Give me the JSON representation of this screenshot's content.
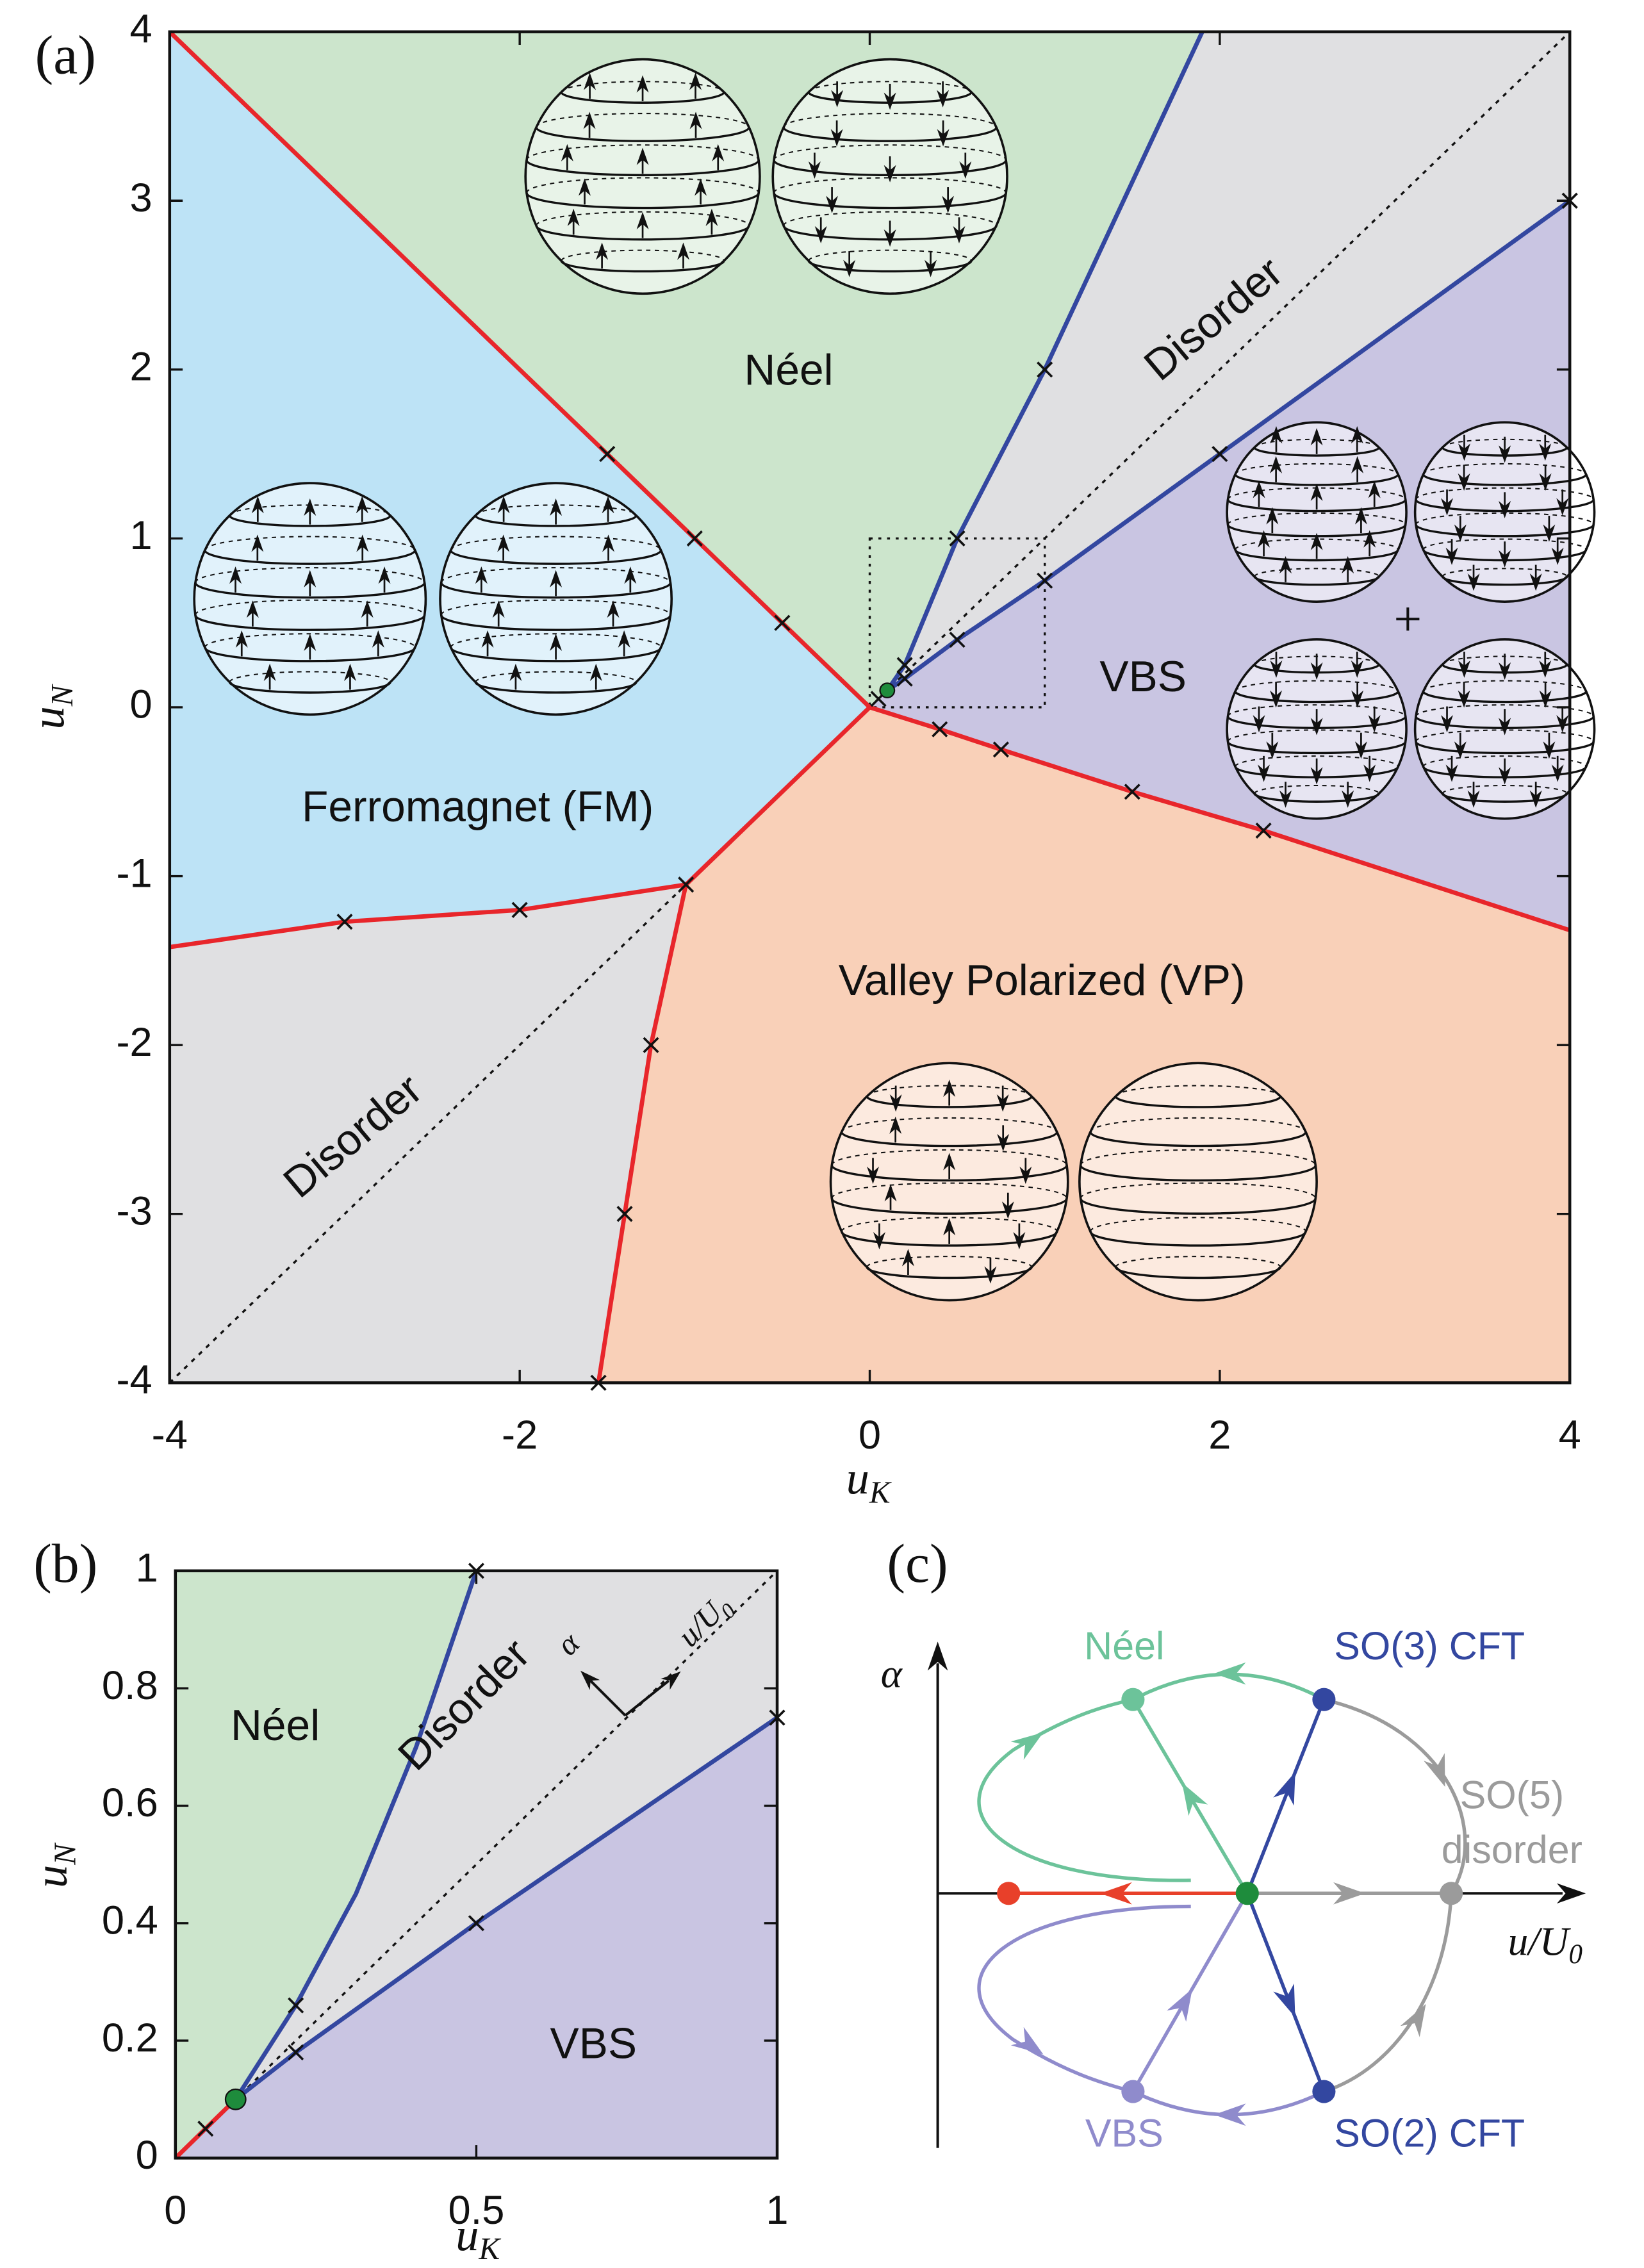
{
  "chart_data": [
    {
      "type": "phase",
      "panel": "(a)",
      "xlabel": {
        "base": "u",
        "sub": "K"
      },
      "ylabel": {
        "base": "u",
        "sub": "N"
      },
      "xlim": [
        -4,
        4
      ],
      "ylim": [
        -4,
        4
      ],
      "xticks": [
        -4,
        -2,
        0,
        2,
        4
      ],
      "yticks": [
        -4,
        -3,
        -2,
        -1,
        0,
        1,
        2,
        3,
        4
      ],
      "regions": [
        {
          "name": "Ferromagnet (FM)",
          "color": "#bde3f6",
          "x": [
            -4,
            0,
            -1.05,
            -2,
            -3,
            -4
          ],
          "y": [
            4,
            0,
            -1.05,
            -1.2,
            -1.27,
            -1.42
          ]
        },
        {
          "name": "Néel",
          "color": "#cce5cc",
          "x": [
            -4,
            1.9,
            1,
            0.5,
            0.2,
            0.1,
            0
          ],
          "y": [
            4,
            4,
            2,
            1,
            0.25,
            0.1,
            0
          ]
        },
        {
          "name": "Disorder",
          "color": "#e0e0e2",
          "x": [
            1.9,
            4,
            4,
            2,
            1,
            0.5,
            0.2,
            0.1,
            0.2,
            0.5,
            1
          ],
          "y": [
            4,
            4,
            3,
            1.5,
            0.75,
            0.4,
            0.17,
            0.1,
            0.25,
            1,
            2
          ]
        },
        {
          "name": "VBS",
          "color": "#c9c5e2",
          "x": [
            0.1,
            4,
            4,
            2.25,
            1.5,
            0.75,
            0.4,
            0
          ],
          "y": [
            0.1,
            3,
            -1.32,
            -0.73,
            -0.5,
            -0.25,
            -0.13,
            0
          ]
        },
        {
          "name": "Valley Polarized (VP)",
          "color": "#f9d0b8",
          "x": [
            0,
            0.4,
            0.75,
            1.5,
            2.25,
            4,
            4,
            -1.55,
            -1.4,
            -1.25,
            -1.05
          ],
          "y": [
            0,
            -0.13,
            -0.25,
            -0.5,
            -0.73,
            -1.32,
            -4,
            -4,
            -3,
            -2,
            -1.05
          ]
        },
        {
          "name": "Disorder",
          "color": "#e0e0e2",
          "x": [
            -4,
            -3,
            -2,
            -1.05,
            -1.25,
            -1.4,
            -1.55,
            -4
          ],
          "y": [
            -1.42,
            -1.27,
            -1.2,
            -1.05,
            -2,
            -3,
            -4,
            -4
          ]
        }
      ],
      "lines": [
        {
          "color": "#e8262b",
          "x": [
            -4,
            -1.5,
            -1,
            -0.5,
            0
          ],
          "y": [
            4,
            1.5,
            1,
            0.5,
            0
          ]
        },
        {
          "color": "#e8262b",
          "x": [
            0,
            0.4,
            0.75,
            1.5,
            2.25,
            4
          ],
          "y": [
            0,
            -0.13,
            -0.25,
            -0.5,
            -0.73,
            -1.32
          ]
        },
        {
          "color": "#e8262b",
          "x": [
            -4,
            -3,
            -2,
            -1.05
          ],
          "y": [
            -1.42,
            -1.27,
            -1.2,
            -1.05
          ]
        },
        {
          "color": "#e8262b",
          "x": [
            0,
            -1.05
          ],
          "y": [
            0,
            -1.05
          ]
        },
        {
          "color": "#e8262b",
          "x": [
            -1.05,
            -1.25,
            -1.4,
            -1.55
          ],
          "y": [
            -1.05,
            -2,
            -3,
            -4
          ]
        },
        {
          "color": "#3347a0",
          "x": [
            0.1,
            0.2,
            0.5,
            1,
            1.9
          ],
          "y": [
            0.1,
            0.25,
            1,
            2,
            4
          ]
        },
        {
          "color": "#3347a0",
          "x": [
            0.1,
            0.2,
            0.5,
            1,
            2,
            4
          ],
          "y": [
            0.1,
            0.17,
            0.4,
            0.75,
            1.5,
            3
          ]
        }
      ],
      "markers": {
        "x": [
          -1.5,
          -1,
          -0.5,
          0.05,
          0.2,
          0.2,
          0.5,
          0.5,
          1,
          1,
          2,
          4,
          0.4,
          0.75,
          1.5,
          2.25,
          -1.05,
          -2,
          -3,
          -1.25,
          -1.4,
          -1.55
        ],
        "y": [
          1.5,
          1,
          0.5,
          0.05,
          0.25,
          0.17,
          1,
          0.4,
          2,
          0.75,
          1.5,
          3,
          -0.13,
          -0.25,
          -0.5,
          -0.73,
          -1.05,
          -1.2,
          -1.27,
          -2,
          -3,
          -4
        ]
      },
      "critical_point": {
        "x": 0.1,
        "y": 0.1,
        "color": "#1e8c3c"
      },
      "diagonal": true,
      "zoom_box": {
        "xlim": [
          0,
          1
        ],
        "ylim": [
          0,
          1
        ]
      }
    },
    {
      "type": "phase",
      "panel": "(b)",
      "xlabel": {
        "base": "u",
        "sub": "K"
      },
      "ylabel": {
        "base": "u",
        "sub": "N"
      },
      "xlim": [
        0,
        1
      ],
      "ylim": [
        0,
        1
      ],
      "xticks": [
        0,
        0.5,
        1
      ],
      "yticks": [
        0,
        0.2,
        0.4,
        0.6,
        0.8,
        1
      ],
      "regions": [
        {
          "name": "Néel",
          "color": "#cce5cc",
          "x": [
            0,
            0.1,
            0.15,
            0.2,
            0.3,
            0.4,
            0.5,
            0
          ],
          "y": [
            0,
            0.1,
            0.18,
            0.26,
            0.45,
            0.7,
            1,
            1
          ]
        },
        {
          "name": "Disorder",
          "color": "#e0e0e2",
          "x": [
            0.5,
            1,
            1,
            0.5,
            0.2,
            0.1,
            0.15,
            0.2,
            0.3,
            0.4
          ],
          "y": [
            1,
            1,
            0.75,
            0.4,
            0.18,
            0.1,
            0.18,
            0.26,
            0.45,
            0.7
          ]
        },
        {
          "name": "VBS",
          "color": "#c9c5e2",
          "x": [
            0,
            0.1,
            0.2,
            0.5,
            1,
            1
          ],
          "y": [
            0,
            0.1,
            0.18,
            0.4,
            0.75,
            0
          ]
        }
      ],
      "lines": [
        {
          "color": "#3347a0",
          "x": [
            0.1,
            0.15,
            0.2,
            0.3,
            0.4,
            0.5
          ],
          "y": [
            0.1,
            0.18,
            0.26,
            0.45,
            0.7,
            1
          ]
        },
        {
          "color": "#3347a0",
          "x": [
            0.1,
            0.2,
            0.5,
            1
          ],
          "y": [
            0.1,
            0.18,
            0.4,
            0.75
          ]
        },
        {
          "color": "#e8262b",
          "x": [
            0,
            0.1
          ],
          "y": [
            0,
            0.1
          ]
        }
      ],
      "markers": {
        "x": [
          0.05,
          0.2,
          0.2,
          0.5,
          1,
          0.5
        ],
        "y": [
          0.05,
          0.26,
          0.18,
          0.4,
          0.75,
          1
        ]
      },
      "critical_point": {
        "x": 0.1,
        "y": 0.1,
        "color": "#1e8c3c"
      },
      "diagonal": true,
      "arrow_labels": {
        "alpha": "α",
        "u": {
          "base": "u/U",
          "sub": "0"
        }
      }
    },
    {
      "type": "flow",
      "panel": "(c)",
      "xlabel": {
        "base": "u/U",
        "sub": "0"
      },
      "ylabel": "α",
      "nodes": [
        {
          "label": "Néel",
          "color": "#6cc39a"
        },
        {
          "label": "SO(3) CFT",
          "color": "#3347a0"
        },
        {
          "label": [
            "SO(5)",
            "disorder"
          ],
          "color": "#9b9b9b"
        },
        {
          "label": "VBS",
          "color": "#8f8bcc"
        },
        {
          "label": "SO(2) CFT",
          "color": "#3347a0"
        }
      ]
    }
  ]
}
